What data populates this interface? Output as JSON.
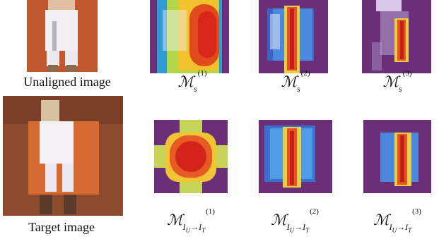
{
  "labels": {
    "unaligned": "Unaligned image",
    "target": "Target image"
  },
  "math": {
    "ms1": {
      "base": "ℳ",
      "sub": "s",
      "sup": "(1)"
    },
    "ms2": {
      "base": "ℳ",
      "sub": "s",
      "sup": "(2)"
    },
    "ms3": {
      "base": "ℳ",
      "sub": "s",
      "sup": "(3)"
    },
    "mt1": {
      "base": "ℳ",
      "sub": "I",
      "subsub1": "U",
      "arrow": "→",
      "sub2": "I",
      "subsub2": "T",
      "sup": "(1)"
    },
    "mt2": {
      "base": "ℳ",
      "sub": "I",
      "subsub1": "U",
      "arrow": "→",
      "sub2": "I",
      "subsub2": "T",
      "sup": "(2)"
    },
    "mt3": {
      "base": "ℳ",
      "sub": "I",
      "subsub1": "U",
      "arrow": "→",
      "sub2": "I",
      "subsub2": "T",
      "sup": "(3)"
    }
  },
  "colors": {
    "orange": "#c05a2e",
    "purple": "#6b2f78",
    "hot": "#e8301c",
    "warm": "#f2d23a",
    "cool": "#3a7fe0"
  }
}
